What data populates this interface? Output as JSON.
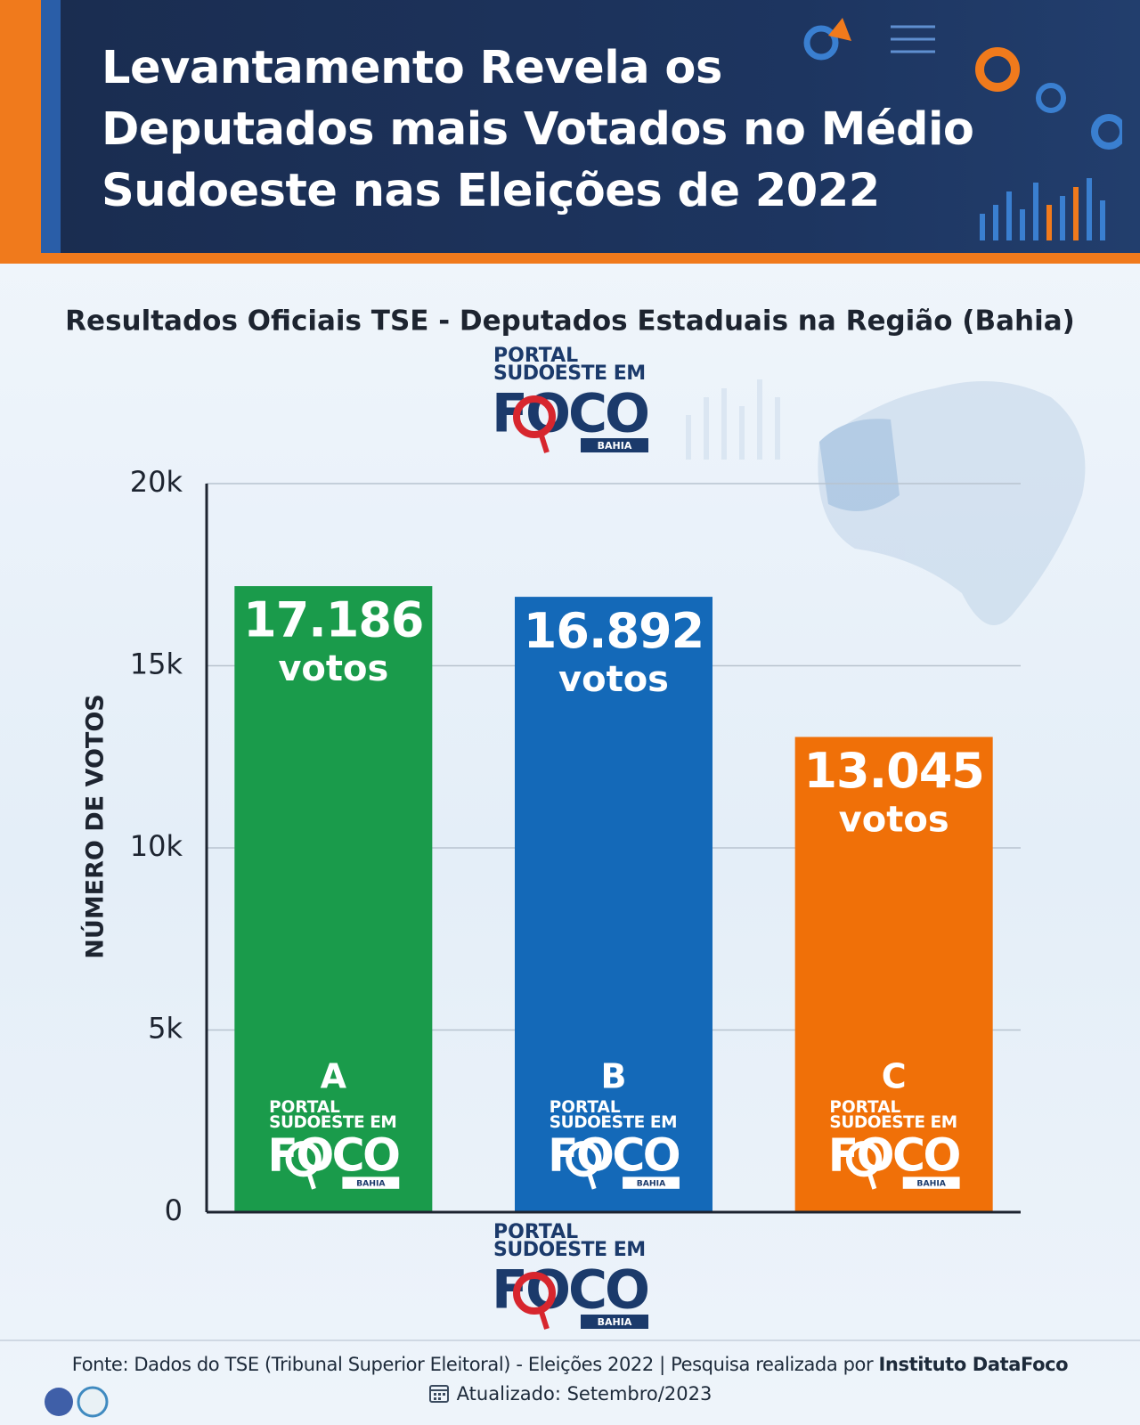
{
  "chart_data": {
    "type": "bar",
    "title": "Levantamento Revela os Deputados mais Votados no Médio Sudoeste nas Eleições de 2022",
    "subtitle": "Resultados Oficiais TSE - Deputados Estaduais na Região (Bahia)",
    "y_label": "NÚMERO DE VOTOS",
    "categories": [
      "A",
      "B",
      "C"
    ],
    "values": [
      17186,
      16892,
      13045
    ],
    "value_labels": [
      "17.186",
      "16.892",
      "13.045"
    ],
    "value_label_unit": "votos",
    "colors": [
      "#1a9b4b",
      "#1469b8",
      "#f07008"
    ],
    "ylim": [
      0,
      20000
    ],
    "yticks": [
      0,
      {
        "value": 5000,
        "label": "5k"
      },
      {
        "value": 10000,
        "label": "10k"
      },
      {
        "value": 15000,
        "label": "15k"
      },
      {
        "value": 20000,
        "label": "20k"
      }
    ],
    "grid": true
  },
  "logo": {
    "line1": "PORTAL",
    "line2": "SUDOESTE EM",
    "word": "FOCO",
    "region": "BAHIA"
  },
  "footer": {
    "source": "Fonte: Dados do TSE (Tribunal Superior Eleitoral) - Eleições 2022 | Pesquisa realizada por",
    "institute": "Instituto DataFoco",
    "updated": "Atualizado: Setembro/2023"
  }
}
